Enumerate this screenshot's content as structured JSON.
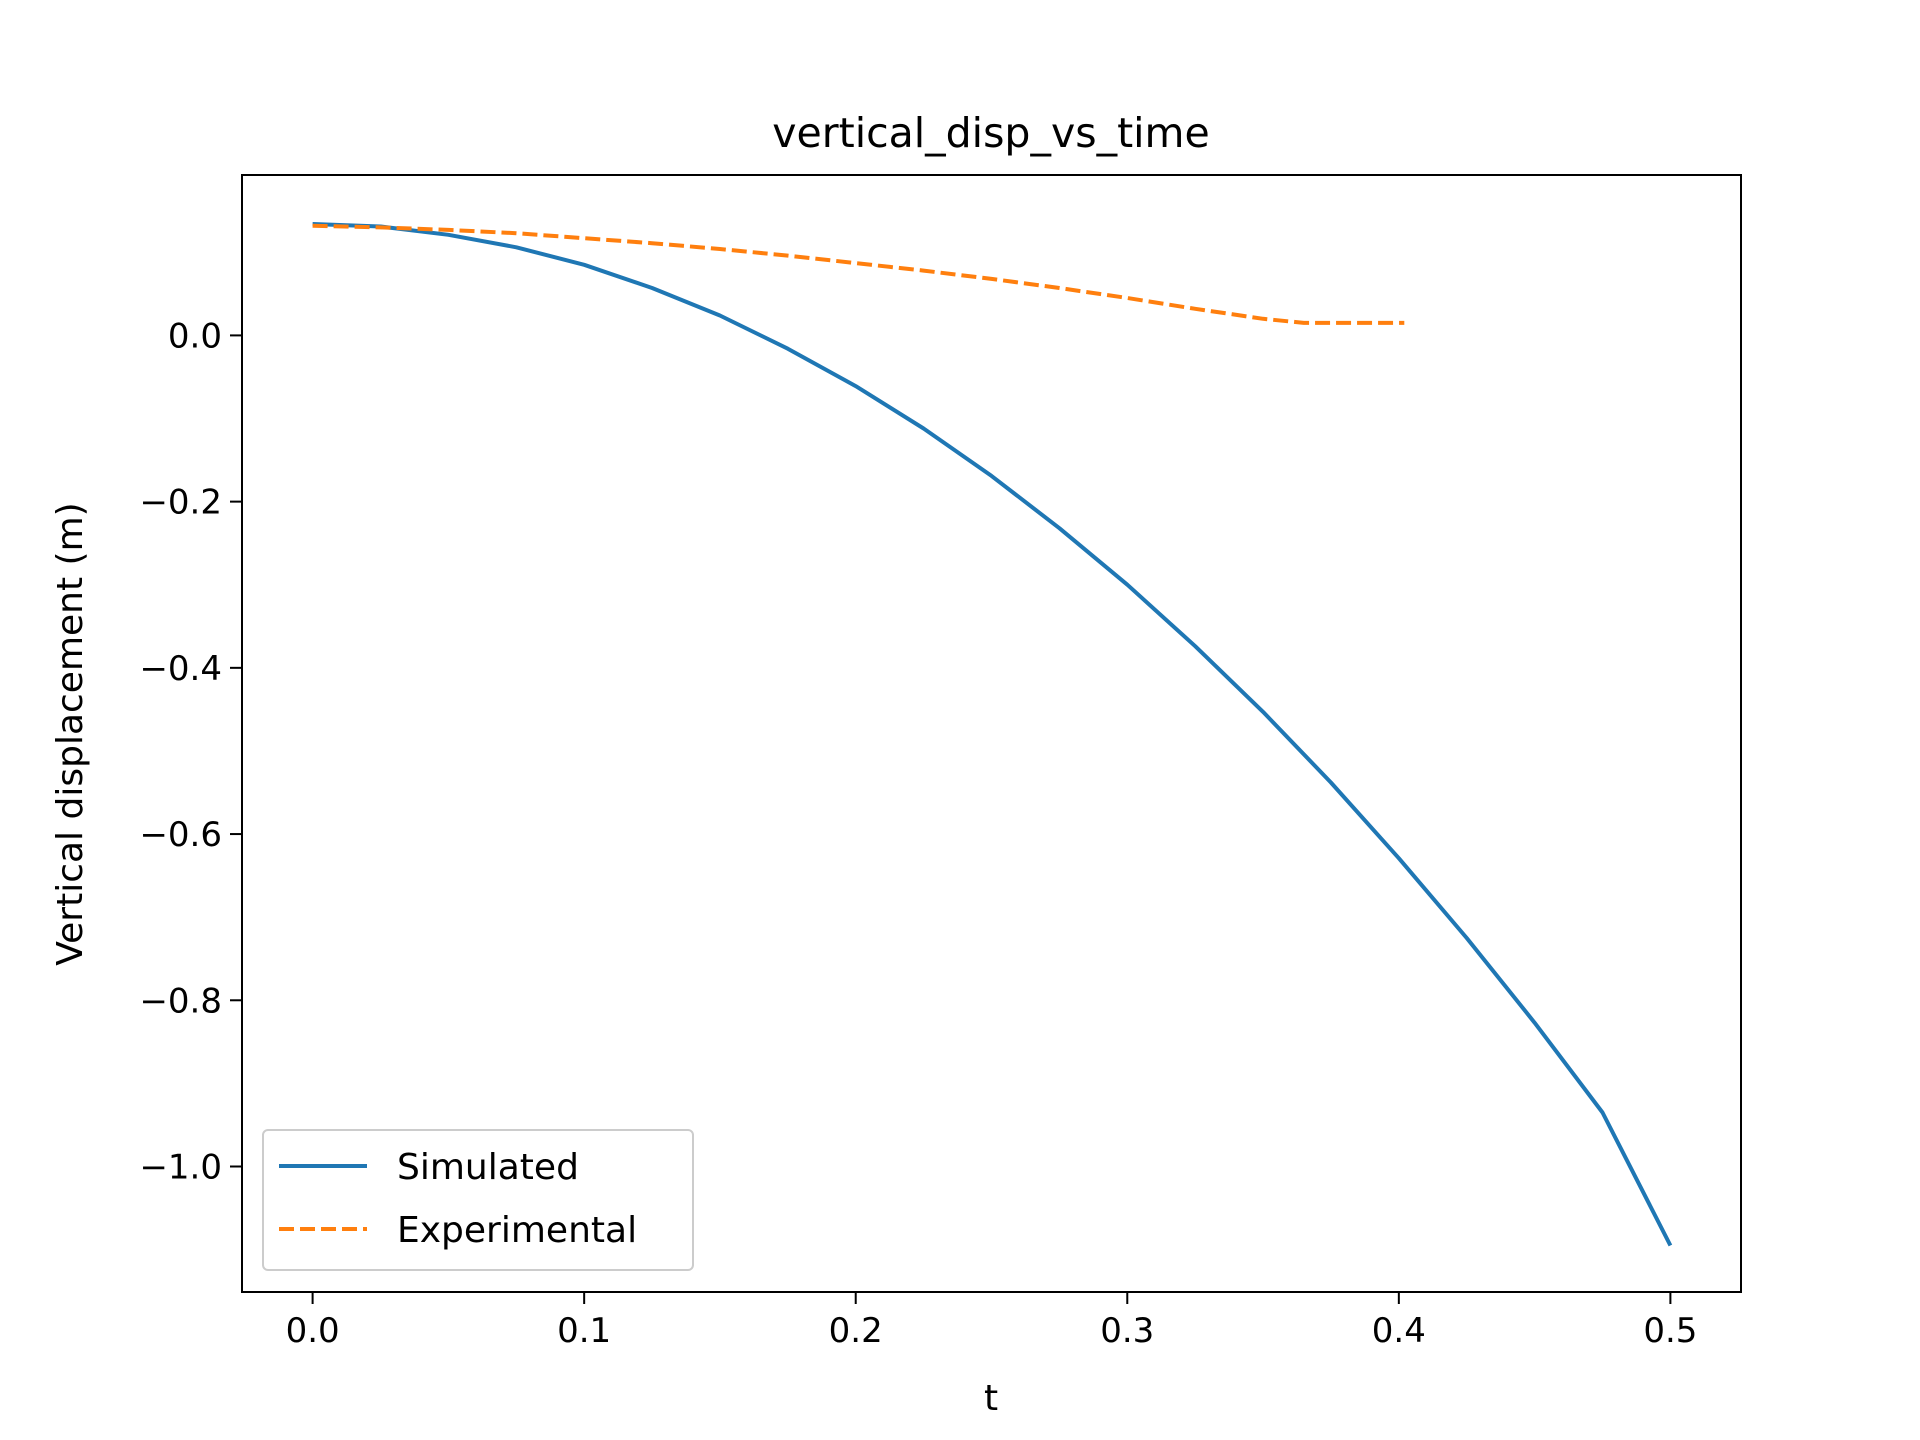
{
  "chart_data": {
    "type": "line",
    "title": "vertical_disp_vs_time",
    "xlabel": "t",
    "ylabel": "Vertical displacement (m)",
    "xlim": [
      -0.026,
      0.526
    ],
    "ylim": [
      -1.151,
      0.193
    ],
    "xticks": [
      0.0,
      0.1,
      0.2,
      0.3,
      0.4,
      0.5
    ],
    "xtick_labels": [
      "0.0",
      "0.1",
      "0.2",
      "0.3",
      "0.4",
      "0.5"
    ],
    "yticks": [
      0.0,
      -0.2,
      -0.4,
      -0.6,
      -0.8,
      -1.0
    ],
    "ytick_labels": [
      "0.0",
      "−0.2",
      "−0.4",
      "−0.6",
      "−0.8",
      "−1.0"
    ],
    "grid": false,
    "legend": "lower-left",
    "series": [
      {
        "name": "Simulated",
        "color": "#1f77b4",
        "dash": "solid",
        "x": [
          0.0,
          0.025,
          0.05,
          0.075,
          0.1,
          0.125,
          0.15,
          0.175,
          0.2,
          0.225,
          0.25,
          0.275,
          0.3,
          0.325,
          0.35,
          0.375,
          0.4,
          0.425,
          0.45,
          0.475,
          0.5
        ],
        "y": [
          0.134,
          0.131,
          0.121,
          0.106,
          0.085,
          0.057,
          0.024,
          -0.016,
          -0.061,
          -0.112,
          -0.169,
          -0.232,
          -0.3,
          -0.374,
          -0.453,
          -0.538,
          -0.629,
          -0.725,
          -0.827,
          -0.935,
          -1.095
        ]
      },
      {
        "name": "Experimental",
        "color": "#ff7f0e",
        "dash": "dashed",
        "x": [
          0.0,
          0.025,
          0.05,
          0.075,
          0.1,
          0.125,
          0.15,
          0.175,
          0.2,
          0.225,
          0.25,
          0.275,
          0.3,
          0.325,
          0.35,
          0.365,
          0.38,
          0.39,
          0.402
        ],
        "y": [
          0.132,
          0.13,
          0.127,
          0.123,
          0.117,
          0.111,
          0.104,
          0.096,
          0.087,
          0.078,
          0.068,
          0.057,
          0.045,
          0.032,
          0.02,
          0.015,
          0.015,
          0.015,
          0.015
        ]
      }
    ]
  }
}
